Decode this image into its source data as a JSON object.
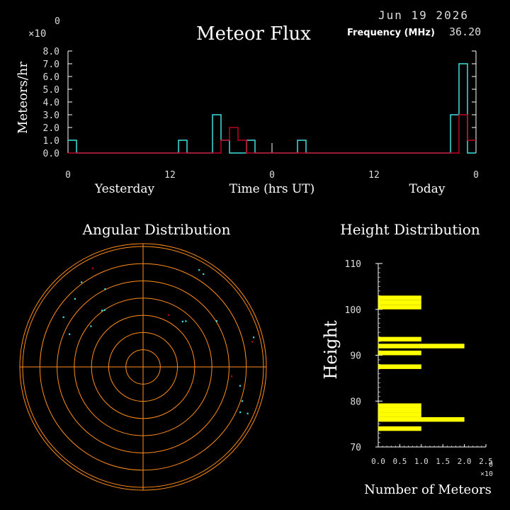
{
  "header": {
    "date": "Jun 19 2026",
    "frequency_label": "Frequency (MHz)",
    "frequency_value": "36.20"
  },
  "colors": {
    "cyan": "#40e0e0",
    "red": "#c00020",
    "orange": "#ff8c1a",
    "yellow": "#ffff00",
    "white": "#ffffff",
    "background": "#000000"
  },
  "chart_data": [
    {
      "type": "bar",
      "title": "Meteor Flux",
      "ylabel": "Meteors/hr",
      "xlabel": "Time (hrs UT)",
      "scale_note": "×10",
      "scale_exponent": "0",
      "ylim": [
        0,
        8
      ],
      "yticks": [
        "0.0",
        "1.0",
        "2.0",
        "3.0",
        "4.0",
        "5.0",
        "6.0",
        "7.0",
        "8.0"
      ],
      "x_range_hours": [
        -24,
        24
      ],
      "xtick_values": [
        -24,
        -12,
        0,
        12,
        24
      ],
      "xticks": [
        "0",
        "12",
        "0",
        "12",
        "0"
      ],
      "day_labels": [
        "Yesterday",
        "Today"
      ],
      "series": [
        {
          "color": "cyan",
          "bins": [
            {
              "x": -24,
              "y": 1
            },
            {
              "x": -11,
              "y": 1
            },
            {
              "x": -7,
              "y": 3
            },
            {
              "x": -6,
              "y": 1
            },
            {
              "x": -3,
              "y": 1
            },
            {
              "x": 3,
              "y": 1
            },
            {
              "x": 21,
              "y": 3
            },
            {
              "x": 22,
              "y": 7
            }
          ]
        },
        {
          "color": "red",
          "bins": [
            {
              "x": -6,
              "y": 1
            },
            {
              "x": -5,
              "y": 2
            },
            {
              "x": -4,
              "y": 1
            },
            {
              "x": 22,
              "y": 3
            },
            {
              "x": 23,
              "y": 1
            }
          ]
        }
      ]
    },
    {
      "type": "scatter",
      "title": "Angular Distribution",
      "rings": 7,
      "points": [
        {
          "az": -27,
          "r": 0.92,
          "color": "red"
        },
        {
          "az": -36,
          "r": 0.87,
          "color": "cyan"
        },
        {
          "az": -45,
          "r": 0.8,
          "color": "cyan"
        },
        {
          "az": -26,
          "r": 0.72,
          "color": "cyan"
        },
        {
          "az": -58,
          "r": 0.78,
          "color": "cyan"
        },
        {
          "az": -66,
          "r": 0.67,
          "color": "cyan"
        },
        {
          "az": -52,
          "r": 0.55,
          "color": "cyan"
        },
        {
          "az": -36,
          "r": 0.58,
          "color": "cyan"
        },
        {
          "az": -34,
          "r": 0.57,
          "color": "cyan"
        },
        {
          "az": 30,
          "r": 0.93,
          "color": "cyan"
        },
        {
          "az": 33,
          "r": 0.92,
          "color": "cyan"
        },
        {
          "az": 26,
          "r": 0.48,
          "color": "red"
        },
        {
          "az": 58,
          "r": 0.72,
          "color": "cyan"
        },
        {
          "az": 41,
          "r": 0.5,
          "color": "cyan"
        },
        {
          "az": 43,
          "r": 0.52,
          "color": "cyan"
        },
        {
          "az": 77,
          "r": 0.93,
          "color": "red"
        },
        {
          "az": 75,
          "r": 0.95,
          "color": "cyan"
        },
        {
          "az": 96,
          "r": 0.74,
          "color": "red"
        },
        {
          "az": 101,
          "r": 0.82,
          "color": "cyan"
        },
        {
          "az": 109,
          "r": 0.87,
          "color": "cyan"
        },
        {
          "az": 114,
          "r": 0.95,
          "color": "cyan"
        },
        {
          "az": 115,
          "r": 0.89,
          "color": "cyan"
        }
      ]
    },
    {
      "type": "bar",
      "orientation": "horizontal",
      "title": "Height Distribution",
      "ylabel": "Height",
      "xlabel": "Number of Meteors",
      "scale_note": "×10",
      "scale_exponent": "0",
      "ylim": [
        70,
        110
      ],
      "yticks": [
        "70",
        "80",
        "90",
        "100",
        "110"
      ],
      "xlim": [
        0,
        2.5
      ],
      "xticks": [
        "0.0",
        "0.5",
        "1.0",
        "1.5",
        "2.0",
        "2.5"
      ],
      "bars": [
        {
          "y": 74,
          "value": 1
        },
        {
          "y": 76,
          "value": 2
        },
        {
          "y": 77,
          "value": 1
        },
        {
          "y": 78,
          "value": 1
        },
        {
          "y": 79,
          "value": 1
        },
        {
          "y": 87.5,
          "value": 1
        },
        {
          "y": 90.5,
          "value": 1
        },
        {
          "y": 92,
          "value": 2
        },
        {
          "y": 93.5,
          "value": 1
        },
        {
          "y": 100.5,
          "value": 1
        },
        {
          "y": 101.5,
          "value": 1
        },
        {
          "y": 102.5,
          "value": 1
        }
      ]
    }
  ]
}
